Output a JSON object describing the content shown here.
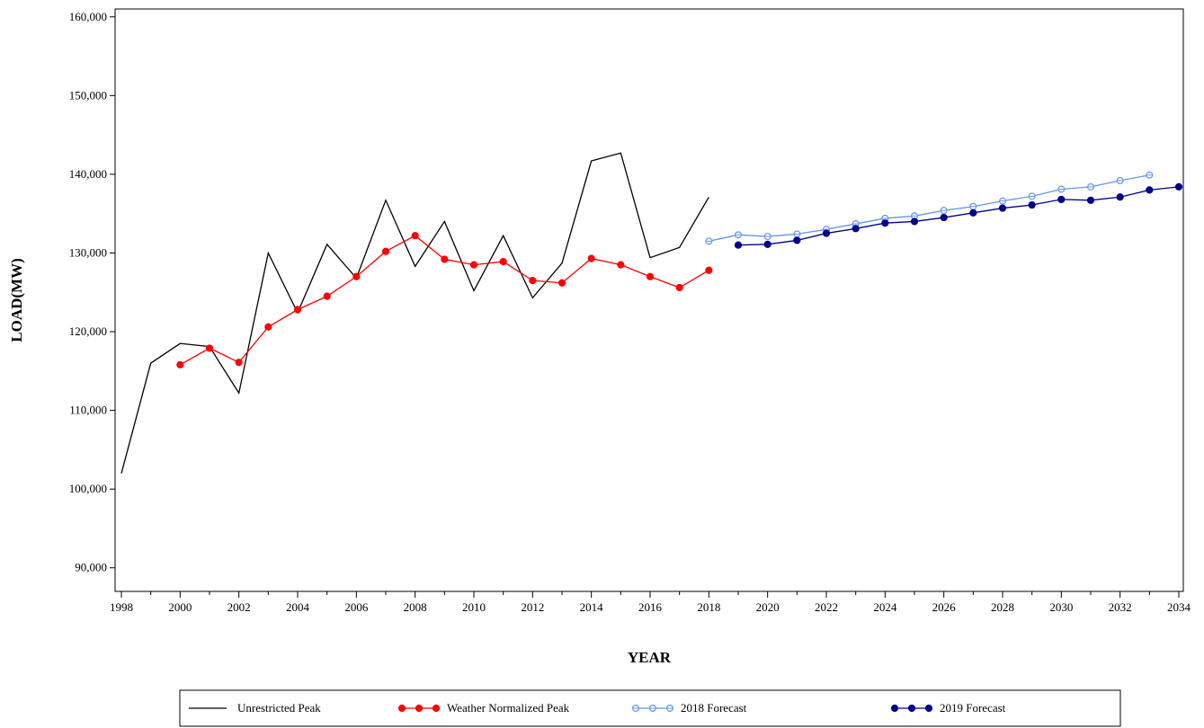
{
  "chart_data": {
    "type": "line",
    "xlabel": "YEAR",
    "ylabel": "LOAD(MW)",
    "xlim": [
      1998,
      2034
    ],
    "ylim": [
      87000,
      161000
    ],
    "x_ticks": [
      "1998",
      "2000",
      "2002",
      "2004",
      "2006",
      "2008",
      "2010",
      "2012",
      "2014",
      "2016",
      "2018",
      "2020",
      "2022",
      "2024",
      "2026",
      "2028",
      "2030",
      "2032",
      "2034"
    ],
    "y_ticks": [
      "90,000",
      "100,000",
      "110,000",
      "120,000",
      "130,000",
      "140,000",
      "150,000",
      "160,000"
    ],
    "legend_position": "bottom",
    "grid": false,
    "series": [
      {
        "name": "Unrestricted Peak",
        "color": "#000000",
        "marker": "none",
        "x": [
          1998,
          1999,
          2000,
          2001,
          2002,
          2003,
          2004,
          2005,
          2006,
          2007,
          2008,
          2009,
          2010,
          2011,
          2012,
          2013,
          2014,
          2015,
          2016,
          2017,
          2018
        ],
        "y": [
          102000,
          116000,
          118500,
          118100,
          112200,
          130000,
          122400,
          131100,
          126800,
          136700,
          128300,
          134000,
          125200,
          132200,
          124300,
          128700,
          141700,
          142700,
          129400,
          130700,
          137100
        ]
      },
      {
        "name": "Weather Normalized Peak",
        "color": "#ff0000",
        "marker": "filled-circle",
        "x": [
          2000,
          2001,
          2002,
          2003,
          2004,
          2005,
          2006,
          2007,
          2008,
          2009,
          2010,
          2011,
          2012,
          2013,
          2014,
          2015,
          2016,
          2017,
          2018
        ],
        "y": [
          115800,
          117900,
          116100,
          120600,
          122800,
          124500,
          127000,
          130200,
          132200,
          129200,
          128500,
          128900,
          126500,
          126200,
          129300,
          128500,
          127000,
          125600,
          127800
        ]
      },
      {
        "name": "2018 Forecast",
        "color": "#6495ed",
        "marker": "open-circle",
        "x": [
          2018,
          2019,
          2020,
          2021,
          2022,
          2023,
          2024,
          2025,
          2026,
          2027,
          2028,
          2029,
          2030,
          2031,
          2032,
          2033
        ],
        "y": [
          131500,
          132300,
          132100,
          132400,
          133000,
          133700,
          134400,
          134700,
          135400,
          135900,
          136600,
          137200,
          138100,
          138400,
          139200,
          139900
        ]
      },
      {
        "name": "2019 Forecast",
        "color": "#00008b",
        "marker": "filled-circle",
        "x": [
          2019,
          2020,
          2021,
          2022,
          2023,
          2024,
          2025,
          2026,
          2027,
          2028,
          2029,
          2030,
          2031,
          2032,
          2033,
          2034
        ],
        "y": [
          131000,
          131100,
          131600,
          132500,
          133100,
          133800,
          134000,
          134500,
          135100,
          135700,
          136100,
          136800,
          136700,
          137100,
          138000,
          138400
        ]
      }
    ]
  }
}
